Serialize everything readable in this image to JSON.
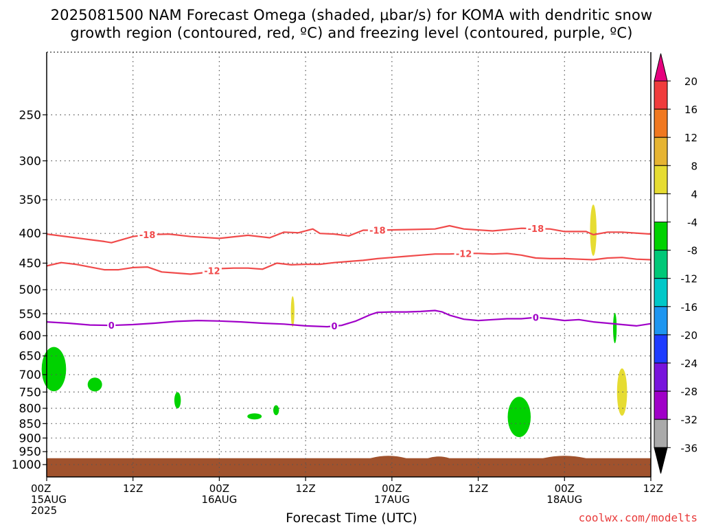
{
  "title_line1": "2025081500 NAM Forecast Omega (shaded, μbar/s) for KOMA with dendritic snow",
  "title_line2": "growth region (contoured, red, ºC) and freezing level (contoured, purple, ºC)",
  "x_axis_label": "Forecast Time (UTC)",
  "credit": "coolwx.com/modelts",
  "chart_data": {
    "type": "heatmap",
    "ylim": [
      1050,
      195
    ],
    "y_ticks": [
      "250",
      "300",
      "350",
      "400",
      "450",
      "500",
      "550",
      "600",
      "650",
      "700",
      "750",
      "800",
      "850",
      "900",
      "950",
      "1000"
    ],
    "x_hours": [
      0,
      84
    ],
    "x_ticks": [
      {
        "hour": 0,
        "lines": [
          "00Z",
          "15AUG",
          "2025"
        ]
      },
      {
        "hour": 12,
        "lines": [
          "12Z"
        ]
      },
      {
        "hour": 24,
        "lines": [
          "00Z",
          "16AUG"
        ]
      },
      {
        "hour": 36,
        "lines": [
          "12Z"
        ]
      },
      {
        "hour": 48,
        "lines": [
          "00Z",
          "17AUG"
        ]
      },
      {
        "hour": 60,
        "lines": [
          "12Z"
        ]
      },
      {
        "hour": 72,
        "lines": [
          "00Z",
          "18AUG"
        ]
      },
      {
        "hour": 84,
        "lines": [
          "12Z"
        ]
      }
    ],
    "grid": true,
    "colorbar": {
      "labels": [
        "20",
        "16",
        "12",
        "8",
        "4",
        "-4",
        "-8",
        "-12",
        "-16",
        "-20",
        "-24",
        "-28",
        "-32",
        "-36"
      ],
      "colors": [
        "#e6007e",
        "#f03c3c",
        "#f07820",
        "#e6b432",
        "#e6dc32",
        "#ffffff",
        "#00d200",
        "#00c878",
        "#00c8c8",
        "#1e96f0",
        "#1e3cff",
        "#7814dc",
        "#a000c8",
        "#aaaaaa",
        "#000000"
      ]
    },
    "series": [
      {
        "name": "-18",
        "color": "#f04a4a",
        "label_hours": [
          14,
          46,
          68
        ],
        "hours": [
          0,
          4,
          8,
          9,
          12,
          14,
          17,
          20,
          24,
          28,
          31,
          33,
          35,
          37,
          38,
          40,
          42,
          44,
          46,
          50,
          54,
          56,
          58,
          62,
          66,
          70,
          72,
          75,
          76,
          78,
          80,
          84
        ],
        "values": [
          401,
          407,
          413,
          415,
          405,
          402,
          401,
          405,
          408,
          403,
          407,
          398,
          399,
          393,
          400,
          401,
          404,
          395,
          395,
          394,
          393,
          388,
          393,
          396,
          392,
          393,
          397,
          397,
          402,
          398,
          398,
          401
        ]
      },
      {
        "name": "-12",
        "color": "#f04a4a",
        "label_hours": [
          23,
          58
        ],
        "hours": [
          0,
          2,
          4,
          6,
          8,
          10,
          12,
          14,
          16,
          18,
          20,
          22,
          24,
          26,
          28,
          30,
          32,
          34,
          36,
          38,
          40,
          42,
          44,
          46,
          48,
          50,
          52,
          54,
          56,
          58,
          60,
          62,
          64,
          66,
          68,
          70,
          72,
          74,
          76,
          78,
          80,
          82,
          84
        ],
        "values": [
          455,
          449,
          452,
          457,
          462,
          462,
          458,
          457,
          466,
          468,
          470,
          467,
          460,
          459,
          459,
          461,
          450,
          453,
          452,
          452,
          449,
          447,
          445,
          442,
          440,
          438,
          436,
          434,
          434,
          433,
          433,
          434,
          433,
          436,
          441,
          442,
          442,
          443,
          444,
          441,
          440,
          443,
          444
        ]
      },
      {
        "name": "0",
        "color": "#a000c8",
        "label_hours": [
          9,
          40,
          68
        ],
        "hours": [
          0,
          3,
          6,
          9,
          12,
          15,
          18,
          21,
          24,
          27,
          30,
          33,
          36,
          39,
          41,
          43,
          45,
          46,
          48,
          50,
          52,
          54,
          55,
          56,
          58,
          60,
          62,
          64,
          66,
          68,
          70,
          72,
          74,
          76,
          78,
          80,
          82,
          84
        ],
        "values": [
          568,
          571,
          575,
          576,
          574,
          571,
          567,
          565,
          566,
          568,
          571,
          573,
          577,
          579,
          576,
          566,
          552,
          547,
          546,
          546,
          545,
          543,
          546,
          553,
          562,
          565,
          563,
          561,
          561,
          558,
          561,
          565,
          563,
          568,
          571,
          574,
          577,
          572
        ]
      }
    ],
    "omega_regions": [
      {
        "level": "-8",
        "color": "#00d200",
        "hour": 1.0,
        "p": 685,
        "dh": 1.7,
        "dp": 60
      },
      {
        "level": "-8",
        "color": "#00d200",
        "hour": 6.7,
        "p": 728,
        "dh": 1.0,
        "dp": 20
      },
      {
        "level": "-8",
        "color": "#00d200",
        "hour": 18.2,
        "p": 775,
        "dh": 0.45,
        "dp": 25
      },
      {
        "level": "-8",
        "color": "#00d200",
        "hour": 28.9,
        "p": 826,
        "dh": 1.0,
        "dp": 10
      },
      {
        "level": "-8",
        "color": "#00d200",
        "hour": 31.9,
        "p": 806,
        "dh": 0.4,
        "dp": 16
      },
      {
        "level": "-8",
        "color": "#00d200",
        "hour": 65.7,
        "p": 828,
        "dh": 1.6,
        "dp": 66
      },
      {
        "level": "-8",
        "color": "#00d200",
        "hour": 79.0,
        "p": 582,
        "dh": 0.25,
        "dp": 35
      },
      {
        "level": "4",
        "color": "#e6dc32",
        "hour": 34.2,
        "p": 545,
        "dh": 0.25,
        "dp": 33
      },
      {
        "level": "4",
        "color": "#e6dc32",
        "hour": 76.0,
        "p": 395,
        "dh": 0.45,
        "dp": 40
      },
      {
        "level": "4",
        "color": "#e6dc32",
        "hour": 80.0,
        "p": 750,
        "dh": 0.7,
        "dp": 70
      }
    ],
    "terrain": {
      "color": "#a0522d",
      "label": "surface"
    }
  }
}
